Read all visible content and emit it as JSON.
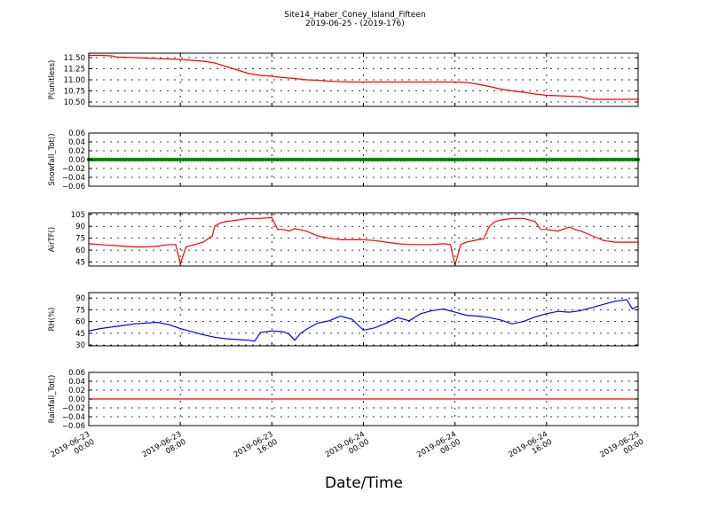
{
  "figure": {
    "title": "Site14_Haber_Coney_Island_Fifteen",
    "subtitle": "2019-06-25 - (2019-176)",
    "xlabel": "Date/Time"
  },
  "x_ticks": [
    {
      "line1": "2019-06-23",
      "line2": "00:00",
      "hour": 0
    },
    {
      "line1": "2019-06-23",
      "line2": "08:00",
      "hour": 8
    },
    {
      "line1": "2019-06-23",
      "line2": "16:00",
      "hour": 16
    },
    {
      "line1": "2019-06-24",
      "line2": "00:00",
      "hour": 24
    },
    {
      "line1": "2019-06-24",
      "line2": "08:00",
      "hour": 32
    },
    {
      "line1": "2019-06-24",
      "line2": "16:00",
      "hour": 40
    },
    {
      "line1": "2019-06-25",
      "line2": "00:00",
      "hour": 48
    }
  ],
  "chart_data": [
    {
      "type": "line",
      "ylabel": "P(unitless)",
      "ylim": [
        10.4,
        11.6
      ],
      "yticks": [
        "10.50",
        "10.75",
        "11.00",
        "11.25",
        "11.50"
      ],
      "ytick_values": [
        10.5,
        10.75,
        11.0,
        11.25,
        11.5
      ],
      "grid": true,
      "color": "#ff0000",
      "x_hours": [
        0,
        1,
        2,
        2.5,
        3,
        4,
        5,
        6,
        7,
        8,
        9,
        9.5,
        10,
        11,
        12,
        13,
        14,
        15,
        16,
        17,
        18,
        19,
        20,
        21,
        22,
        23,
        24,
        26,
        28,
        30,
        32,
        33,
        34,
        35,
        36,
        37,
        38,
        39,
        40,
        41,
        42,
        43,
        43.5,
        44,
        45,
        46,
        47,
        48
      ],
      "values": [
        11.55,
        11.55,
        11.54,
        11.51,
        11.51,
        11.5,
        11.49,
        11.48,
        11.47,
        11.46,
        11.44,
        11.43,
        11.42,
        11.38,
        11.3,
        11.22,
        11.14,
        11.1,
        11.08,
        11.05,
        11.03,
        11.0,
        10.99,
        10.97,
        10.96,
        10.95,
        10.95,
        10.95,
        10.95,
        10.95,
        10.95,
        10.94,
        10.9,
        10.85,
        10.79,
        10.75,
        10.72,
        10.68,
        10.65,
        10.64,
        10.63,
        10.62,
        10.58,
        10.56,
        10.56,
        10.56,
        10.56,
        10.56
      ]
    },
    {
      "type": "scatter",
      "ylabel": "Snowfall_Tot()",
      "ylim": [
        -0.06,
        0.06
      ],
      "yticks": [
        "−0.06",
        "−0.04",
        "−0.02",
        "0.00",
        "0.02",
        "0.04",
        "0.06"
      ],
      "ytick_values": [
        -0.06,
        -0.04,
        -0.02,
        0.0,
        0.02,
        0.04,
        0.06
      ],
      "grid": true,
      "color": "#008000",
      "marker": "dots",
      "x_range": [
        0,
        48
      ],
      "constant_value": 0.0
    },
    {
      "type": "line",
      "ylabel": "AirTF()",
      "ylim": [
        40,
        107
      ],
      "yticks": [
        "45",
        "60",
        "75",
        "90",
        "105"
      ],
      "ytick_values": [
        45,
        60,
        75,
        90,
        105
      ],
      "grid": true,
      "color": "#ff0000",
      "x_hours": [
        0,
        1,
        2,
        3,
        4,
        5,
        6,
        7,
        7.6,
        8.0,
        8.5,
        9,
        10,
        10.8,
        11,
        11.5,
        12,
        13,
        14,
        15,
        16,
        16.5,
        17,
        17.5,
        18,
        19,
        20,
        21,
        22,
        23,
        24,
        25,
        26,
        27,
        28,
        29,
        30,
        31,
        31.6,
        32.0,
        32.5,
        33,
        34,
        34.5,
        35,
        35.5,
        36,
        37,
        38,
        39,
        39.5,
        40,
        41,
        42,
        42.5,
        43,
        44,
        45,
        46,
        47,
        48
      ],
      "values": [
        68,
        67,
        66,
        65,
        64,
        64,
        65,
        67,
        67,
        43,
        64,
        66,
        70,
        78,
        90,
        94,
        96,
        98,
        100,
        100,
        101,
        86,
        86,
        84,
        87,
        84,
        78,
        75,
        73,
        73,
        73,
        72,
        70,
        68,
        67,
        67,
        67,
        68,
        67,
        41,
        67,
        70,
        73,
        74,
        90,
        96,
        98,
        100,
        100,
        96,
        86,
        86,
        84,
        89,
        86,
        84,
        78,
        72,
        70,
        70,
        70
      ]
    },
    {
      "type": "line",
      "ylabel": "RH(%)",
      "ylim": [
        29,
        97
      ],
      "yticks": [
        "30",
        "45",
        "60",
        "75",
        "90"
      ],
      "ytick_values": [
        30,
        45,
        60,
        75,
        90
      ],
      "grid": true,
      "color": "#0000ff",
      "x_hours": [
        0,
        1,
        2,
        3,
        4,
        5,
        6,
        7,
        8,
        9,
        10,
        11,
        12,
        13,
        14,
        14.5,
        15,
        16,
        17,
        17.5,
        18,
        18.5,
        19,
        20,
        21,
        22,
        23,
        24,
        25,
        26,
        27,
        28,
        29,
        30,
        31,
        32,
        33,
        34,
        35,
        36,
        37,
        38,
        39,
        40,
        41,
        42,
        43,
        44,
        45,
        46,
        47,
        47.5,
        48
      ],
      "values": [
        48,
        51,
        53,
        55,
        57,
        58,
        59,
        56,
        51,
        47,
        43,
        40,
        38,
        37,
        36,
        35,
        46,
        48,
        47,
        44,
        36,
        45,
        50,
        58,
        61,
        67,
        63,
        49,
        52,
        58,
        65,
        61,
        70,
        74,
        76,
        72,
        68,
        67,
        65,
        62,
        57,
        60,
        66,
        70,
        73,
        72,
        74,
        78,
        82,
        86,
        88,
        76,
        80
      ]
    },
    {
      "type": "line",
      "ylabel": "Rainfall_Tot()",
      "ylim": [
        -0.06,
        0.06
      ],
      "yticks": [
        "−0.06",
        "−0.04",
        "−0.02",
        "0.00",
        "0.02",
        "0.04",
        "0.06"
      ],
      "ytick_values": [
        -0.06,
        -0.04,
        -0.02,
        0.0,
        0.02,
        0.04,
        0.06
      ],
      "grid": true,
      "color": "#ff0000",
      "x_hours": [
        0,
        48
      ],
      "values": [
        0.0,
        0.0
      ]
    }
  ]
}
